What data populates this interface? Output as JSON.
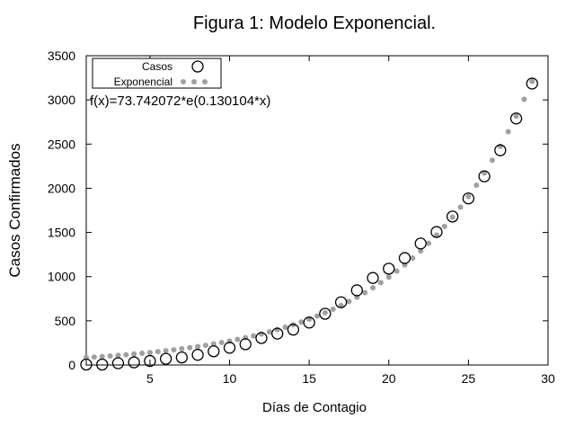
{
  "chart_data": {
    "type": "scatter",
    "title": "Figura 1: Modelo Exponencial.",
    "xlabel": "Días de Contagio",
    "ylabel": "Casos Confirmados",
    "xlim": [
      1,
      30
    ],
    "ylim": [
      0,
      3500
    ],
    "xticks": [
      "5",
      "10",
      "15",
      "20",
      "25",
      "30"
    ],
    "yticks": [
      "0",
      "500",
      "1000",
      "1500",
      "2000",
      "2500",
      "3000",
      "3500"
    ],
    "grid": false,
    "legend_placement": "top-left",
    "annotation": "f(x)=73.742072*e(0.130104*x)",
    "series": [
      {
        "name": "Casos",
        "marker": "open-circle",
        "color": "#000000",
        "x": [
          1,
          2,
          3,
          4,
          5,
          6,
          7,
          8,
          9,
          10,
          11,
          12,
          13,
          14,
          15,
          16,
          17,
          18,
          19,
          20,
          21,
          22,
          23,
          24,
          25,
          26,
          27,
          28,
          29
        ],
        "y": [
          5,
          5,
          20,
          30,
          45,
          70,
          85,
          115,
          155,
          195,
          235,
          305,
          355,
          400,
          480,
          580,
          710,
          845,
          985,
          1090,
          1210,
          1375,
          1505,
          1680,
          1885,
          2135,
          2430,
          2790,
          3185
        ]
      },
      {
        "name": "Exponencial",
        "marker": "dots",
        "color": "#a0a0a0",
        "function": {
          "a": 73.742072,
          "b": 0.130104
        },
        "x_range": [
          1,
          29
        ]
      }
    ]
  }
}
